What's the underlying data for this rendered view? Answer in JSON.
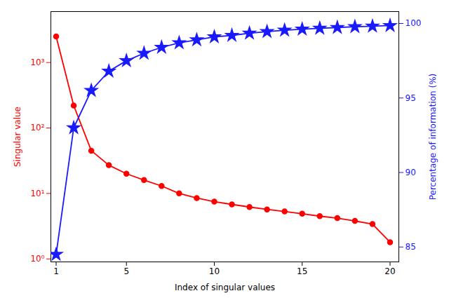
{
  "chart_data": {
    "type": "line",
    "x": [
      1,
      2,
      3,
      4,
      5,
      6,
      7,
      8,
      9,
      10,
      11,
      12,
      13,
      14,
      15,
      16,
      17,
      18,
      19,
      20
    ],
    "xlabel": "Index of singular values",
    "ylabel": "Singular value",
    "y2label": "Percentage of information (%)",
    "xlim": [
      0.7,
      20.5
    ],
    "xticks": [
      1,
      5,
      10,
      15,
      20
    ],
    "ylim": [
      0.9,
      6000
    ],
    "yticks": [
      {
        "value": 1,
        "label": "10⁰"
      },
      {
        "value": 10,
        "label": "10¹"
      },
      {
        "value": 100,
        "label": "10²"
      },
      {
        "value": 1000,
        "label": "10³"
      }
    ],
    "y2lim": [
      84.0,
      100.8
    ],
    "y2ticks": [
      85,
      90,
      95,
      100
    ],
    "log": "y",
    "grid": false,
    "series": [
      {
        "color": "#ff0000",
        "marker": "circle",
        "values": [
          2500,
          220,
          45,
          27,
          20,
          16,
          13,
          10,
          8.5,
          7.5,
          6.8,
          6.2,
          5.7,
          5.3,
          4.9,
          4.5,
          4.2,
          3.8,
          3.4,
          1.8
        ]
      },
      {
        "color": "#1a1aff",
        "marker": "star",
        "axis": "y2",
        "values": [
          84.5,
          93.0,
          95.5,
          96.8,
          97.5,
          98.0,
          98.4,
          98.7,
          98.9,
          99.1,
          99.2,
          99.35,
          99.45,
          99.55,
          99.62,
          99.68,
          99.73,
          99.78,
          99.82,
          99.86
        ]
      }
    ]
  }
}
